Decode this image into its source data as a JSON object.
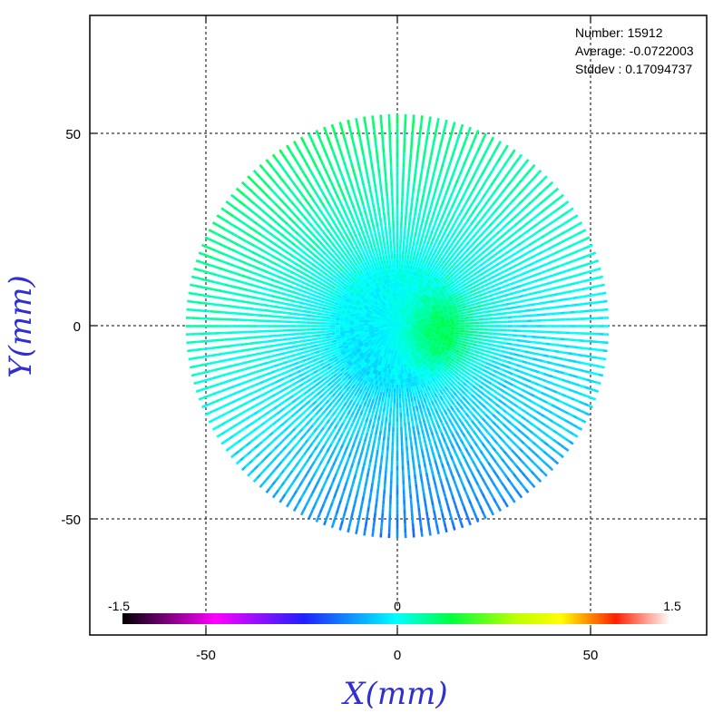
{
  "chart_data": {
    "type": "scatter",
    "description_units": "mm",
    "xlabel": "X(mm)",
    "ylabel": "Y(mm)",
    "xlim": [
      -80,
      80
    ],
    "ylim": [
      -80,
      80
    ],
    "x_ticks": [
      -50,
      0,
      50
    ],
    "y_ticks": [
      -50,
      0,
      50
    ],
    "x_tick_labels": [
      "-50",
      "0",
      "50"
    ],
    "y_tick_labels": [
      "-50",
      "0",
      "50"
    ],
    "grid": true,
    "grid_lines": [
      -50,
      0,
      50
    ],
    "pattern": {
      "shape": "radial-spokes",
      "radius_mm": 55,
      "spoke_count": 160
    },
    "stats": {
      "number_label": "Number: 15912",
      "average_label": "Average: -0.0722003",
      "stddev_label": "Stddev : 0.17094737"
    },
    "colorbar": {
      "min": -1.5,
      "max": 1.5,
      "min_label": "-1.5",
      "mid_label": "0",
      "max_label": "1.5",
      "stops": [
        "#000000",
        "#ff00ff",
        "#0000ff",
        "#00ffff",
        "#00ff00",
        "#ffff00",
        "#ff0000",
        "#ffffff"
      ]
    }
  }
}
